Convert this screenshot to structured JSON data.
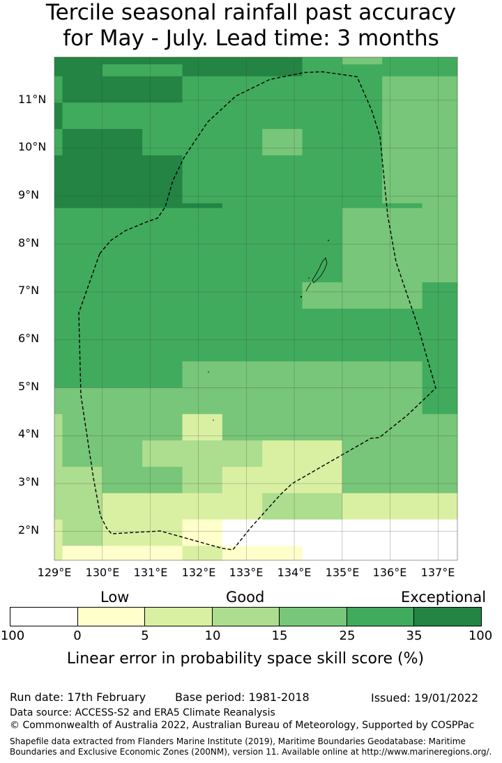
{
  "title_line1": "Tercile seasonal rainfall past accuracy",
  "title_line2": "for May - July. Lead time: 3 months",
  "lat_labels": [
    "11°N",
    "10°N",
    "9°N",
    "8°N",
    "7°N",
    "6°N",
    "5°N",
    "4°N",
    "3°N",
    "2°N"
  ],
  "lon_labels": [
    "129°E",
    "130°E",
    "131°E",
    "132°E",
    "133°E",
    "134°E",
    "135°E",
    "136°E",
    "137°E"
  ],
  "legend": {
    "words": {
      "low": "Low",
      "good": "Good",
      "exceptional": "Exceptional"
    },
    "ticks": [
      "100",
      "0",
      "5",
      "10",
      "15",
      "25",
      "35",
      "100"
    ],
    "colors": [
      "#ffffff",
      "#ffffcc",
      "#d9f0a3",
      "#addd8e",
      "#78c679",
      "#41ab5d",
      "#238443"
    ],
    "title": "Linear error in probability space skill score (%)"
  },
  "footer": {
    "run_date": "Run date: 17th February",
    "base_period": "Base period: 1981-2018",
    "issued": "Issued: 19/01/2022",
    "data_source": "Data source: ACCESS-S2 and ERA5 Climate Reanalysis",
    "copyright": "© Commonwealth of Australia 2022, Australian Bureau of Meteorology, Supported by COSPPac",
    "shapefile": "Shapefile data extracted from Flanders Marine Institute (2019), Maritime Boundaries Geodatabase: Maritime Boundaries and Exclusive Economic Zones (200NM), version 11. Available online at http://www.marineregions.org/."
  },
  "map": {
    "lon_range": [
      129,
      137.4
    ],
    "lat_range": [
      1.4,
      11.9
    ],
    "grid_lines": true,
    "columns": [
      129,
      129.167,
      130,
      130.833,
      131.667,
      132.5,
      133.333,
      134.167,
      135,
      135.833,
      136.667,
      137.4
    ],
    "rows_top_lat": [
      11.9,
      11.75,
      11.5,
      10.95,
      10.4,
      9.85,
      8.85,
      8.75,
      8.3,
      7.75,
      7.2,
      6.65,
      6.1,
      5.55,
      5.0,
      4.45,
      3.9,
      3.35,
      2.8,
      2.25,
      1.7
    ],
    "bottom_lat": 1.4,
    "cells": [
      "66666665455",
      "66556665555",
      "56665555544",
      "65555555544",
      "56655545544",
      "66665555544",
      "66666555554",
      "55555555444",
      "55555555444",
      "55555555444",
      "55555554445",
      "55555555555",
      "55555555555",
      "55554444445",
      "44444444445",
      "34442444444",
      "34433322444",
      "33443222444",
      "33222233222",
      "23221000000",
      "21112110000"
    ]
  }
}
